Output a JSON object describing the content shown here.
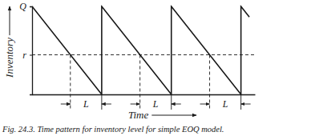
{
  "chart_data": {
    "type": "line",
    "title": "Fig. 24.3. Time pattern for inventory level for simple EOQ model.",
    "x_label": "Time",
    "y_label": "Inventory",
    "x": [
      0,
      10,
      10,
      20,
      20,
      30,
      30,
      31.2
    ],
    "values": [
      100,
      0,
      100,
      0,
      100,
      0,
      100,
      88
    ],
    "color": "#1a1a1a",
    "xlim": [
      0,
      32
    ],
    "ylim": [
      0,
      100
    ],
    "xticks": [],
    "yticks": [
      {
        "value": 100,
        "label": "Q"
      },
      {
        "value": 45,
        "label": "r"
      }
    ],
    "tick_labels": "y",
    "grid": false,
    "reference_lines": [
      {
        "axis": "y",
        "value": 45,
        "line_style": "dashed"
      }
    ],
    "annotations": [
      {
        "text": "L",
        "x": [
          5.5,
          10
        ],
        "line_style": "dashed"
      },
      {
        "text": "L",
        "x": [
          15.5,
          20
        ],
        "line_style": "dashed"
      },
      {
        "text": "L",
        "x": [
          25.5,
          30
        ],
        "line_style": "dashed"
      }
    ]
  }
}
